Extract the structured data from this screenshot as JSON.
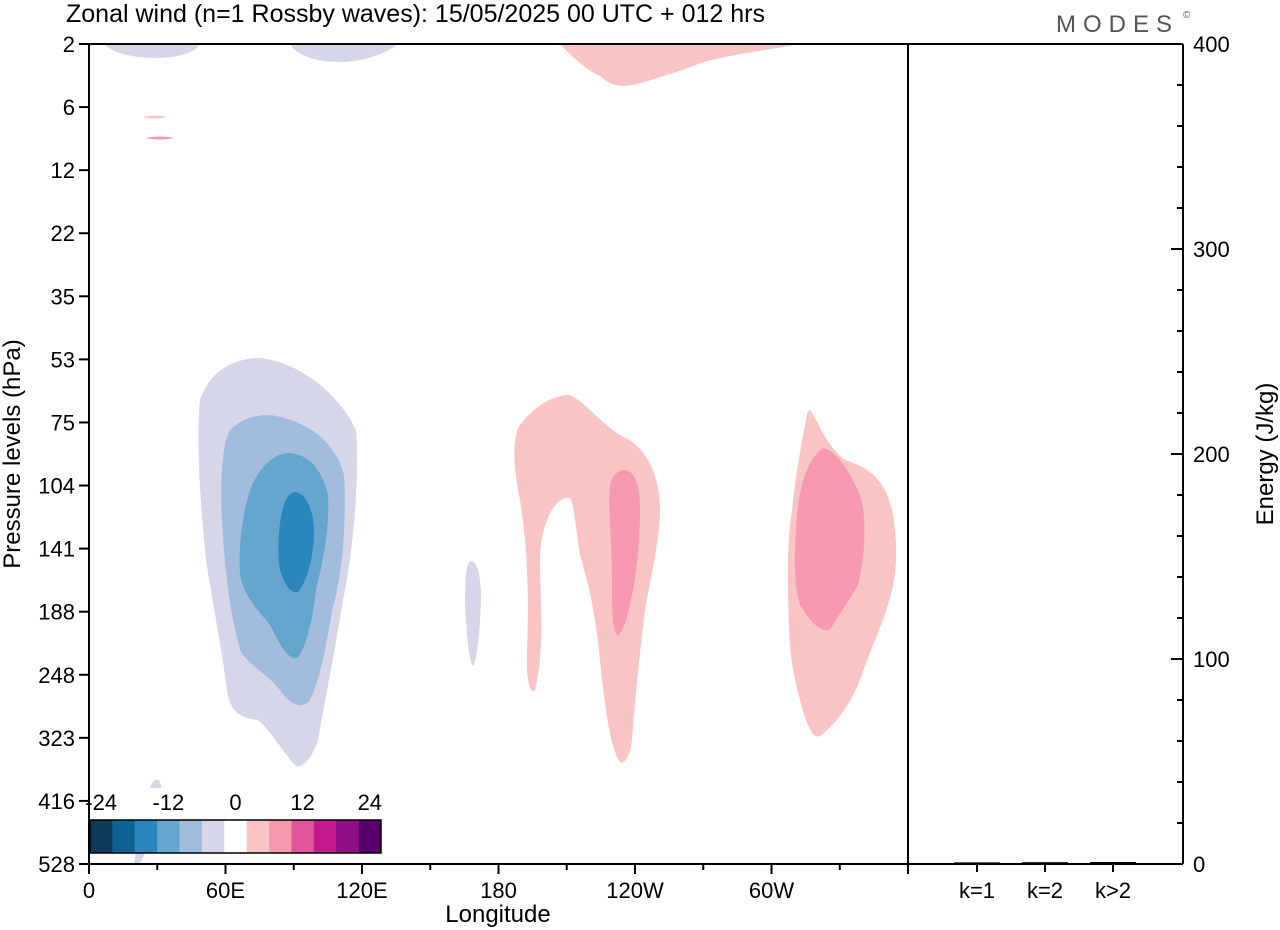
{
  "title": "Zonal wind (n=1 Rossby waves):  15/05/2025  00 UTC  + 012 hrs",
  "brand": "MODES",
  "brand_mark": "©",
  "chart_data": [
    {
      "type": "heatmap",
      "name": "zonal-wind-longitude-pressure",
      "xlabel": "Longitude",
      "ylabel": "Pressure levels (hPa)",
      "x_range_deg": [
        0,
        360
      ],
      "x_ticks": [
        {
          "deg": 0,
          "label": "0"
        },
        {
          "deg": 60,
          "label": "60E"
        },
        {
          "deg": 120,
          "label": "120E"
        },
        {
          "deg": 180,
          "label": "180"
        },
        {
          "deg": 240,
          "label": "120W"
        },
        {
          "deg": 300,
          "label": "60W"
        }
      ],
      "pressure_levels": [
        "2",
        "6",
        "12",
        "22",
        "35",
        "53",
        "75",
        "104",
        "141",
        "188",
        "248",
        "323",
        "416",
        "528"
      ],
      "contour_levels": [
        -24,
        -20,
        -16,
        -12,
        -8,
        -4,
        0,
        4,
        8,
        12,
        16,
        20,
        24
      ],
      "colorbar_labels": [
        "-24",
        "-12",
        "0",
        "12",
        "24"
      ],
      "colorbar_colors": [
        "#0c3c59",
        "#0b6393",
        "#2b86bc",
        "#66a5ce",
        "#a2bcdd",
        "#d5d6e8",
        "#ffffff",
        "#f9c4c4",
        "#f799b0",
        "#e2549a",
        "#c3198a",
        "#8f0f84",
        "#58006c"
      ],
      "features": [
        {
          "sign": "negative",
          "lon_center": 90,
          "pressure_center_hPa": 141,
          "min_value_class": -16,
          "lon_span": [
            40,
            120
          ],
          "pressure_span_hPa": [
            53,
            323
          ]
        },
        {
          "sign": "negative",
          "lon_center": 20,
          "pressure_center_hPa": 2,
          "min_value_class": -4
        },
        {
          "sign": "negative",
          "lon_center": 113,
          "pressure_center_hPa": 2,
          "min_value_class": -4
        },
        {
          "sign": "negative",
          "lon_center": 168,
          "pressure_center_hPa": 188,
          "min_value_class": -4
        },
        {
          "sign": "negative",
          "lon_center": 28,
          "pressure_center_hPa": 416,
          "min_value_class": -4
        },
        {
          "sign": "positive",
          "lon_center": 230,
          "pressure_center_hPa": 141,
          "max_value_class": 8,
          "lon_span": [
            188,
            260
          ],
          "pressure_span_hPa": [
            75,
            323
          ]
        },
        {
          "sign": "positive",
          "lon_center": 320,
          "pressure_center_hPa": 141,
          "max_value_class": 8,
          "lon_span": [
            300,
            355
          ],
          "pressure_span_hPa": [
            75,
            323
          ]
        },
        {
          "sign": "positive",
          "lon_center": 240,
          "pressure_center_hPa": 2,
          "max_value_class": 4
        }
      ]
    },
    {
      "type": "bar",
      "name": "wave-energy",
      "ylabel": "Energy (J/kg)",
      "ylim": [
        0,
        400
      ],
      "y_ticks": [
        "0",
        "100",
        "200",
        "300",
        "400"
      ],
      "categories": [
        "k=1",
        "k=2",
        "k>2"
      ],
      "values": [
        0.3,
        0.4,
        0.5
      ]
    }
  ]
}
